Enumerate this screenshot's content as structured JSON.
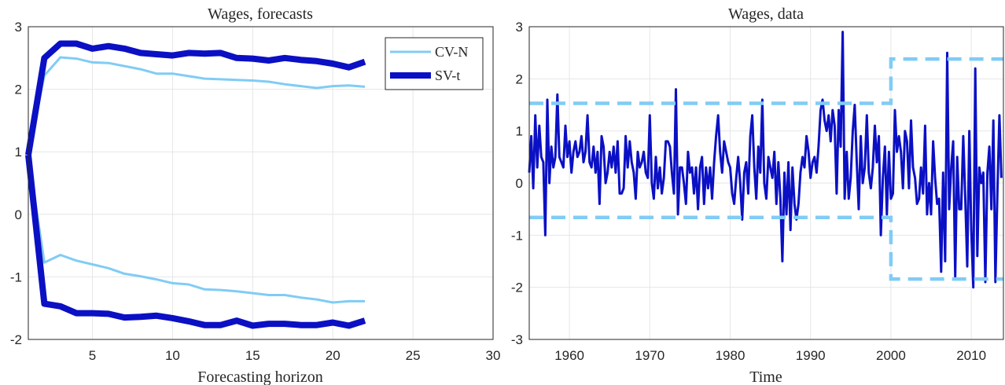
{
  "chart_data": [
    {
      "type": "line",
      "title": "Wages, forecasts",
      "xlabel": "Forecasting horizon",
      "ylabel": "",
      "xlim": [
        1,
        30
      ],
      "ylim": [
        -2,
        3
      ],
      "xticks": [
        5,
        10,
        15,
        20,
        25,
        30
      ],
      "yticks": [
        3,
        2,
        1,
        0,
        -1,
        -2
      ],
      "grid": true,
      "legend": {
        "position": "top-right",
        "entries": [
          "CV-N",
          "SV-t"
        ]
      },
      "x": [
        1,
        2,
        3,
        4,
        5,
        6,
        7,
        8,
        9,
        10,
        11,
        12,
        13,
        14,
        15,
        16,
        17,
        18,
        19,
        20,
        21,
        22
      ],
      "series": [
        {
          "name": "CV-N",
          "band": "upper",
          "color": "#80ccf5",
          "values": [
            0.95,
            2.22,
            2.51,
            2.49,
            2.43,
            2.42,
            2.37,
            2.32,
            2.25,
            2.25,
            2.21,
            2.17,
            2.16,
            2.15,
            2.14,
            2.12,
            2.08,
            2.05,
            2.02,
            2.05,
            2.06,
            2.04
          ]
        },
        {
          "name": "CV-N",
          "band": "lower",
          "color": "#80ccf5",
          "values": [
            0.95,
            -0.77,
            -0.65,
            -0.74,
            -0.8,
            -0.86,
            -0.95,
            -0.99,
            -1.04,
            -1.1,
            -1.12,
            -1.2,
            -1.21,
            -1.23,
            -1.26,
            -1.29,
            -1.29,
            -1.33,
            -1.36,
            -1.41,
            -1.39,
            -1.39
          ]
        },
        {
          "name": "SV-t",
          "band": "upper",
          "color": "#0b10c4",
          "values": [
            0.95,
            2.5,
            2.73,
            2.73,
            2.65,
            2.69,
            2.65,
            2.58,
            2.56,
            2.54,
            2.58,
            2.57,
            2.58,
            2.5,
            2.49,
            2.46,
            2.5,
            2.47,
            2.45,
            2.41,
            2.35,
            2.44
          ]
        },
        {
          "name": "SV-t",
          "band": "lower",
          "color": "#0b10c4",
          "values": [
            0.95,
            -1.43,
            -1.47,
            -1.58,
            -1.58,
            -1.59,
            -1.65,
            -1.64,
            -1.62,
            -1.66,
            -1.71,
            -1.77,
            -1.77,
            -1.7,
            -1.78,
            -1.75,
            -1.75,
            -1.77,
            -1.77,
            -1.73,
            -1.78,
            -1.7
          ]
        }
      ]
    },
    {
      "type": "line",
      "title": "Wages, data",
      "xlabel": "Time",
      "ylabel": "",
      "xlim": [
        1955,
        2014
      ],
      "ylim": [
        -3,
        3
      ],
      "xticks": [
        1960,
        1970,
        1980,
        1990,
        2000,
        2010
      ],
      "yticks": [
        3,
        2,
        1,
        0,
        -1,
        -2,
        -3
      ],
      "grid": true,
      "series": [
        {
          "name": "",
          "color": "#0b10c4",
          "x_start": 1955,
          "x_step": 0.25,
          "values": [
            0.2,
            0.9,
            -0.1,
            1.3,
            0.3,
            1.1,
            0.5,
            0.4,
            -1.0,
            1.6,
            0.0,
            0.7,
            0.3,
            0.5,
            1.7,
            0.5,
            0.4,
            0.3,
            1.1,
            0.5,
            0.8,
            0.2,
            0.6,
            0.8,
            0.5,
            0.6,
            0.9,
            0.4,
            0.6,
            1.3,
            0.4,
            0.3,
            0.7,
            0.2,
            0.6,
            -0.4,
            0.9,
            0.7,
            0.0,
            0.2,
            0.6,
            0.3,
            0.7,
            0.2,
            0.8,
            -0.2,
            -0.2,
            -0.1,
            0.9,
            0.3,
            0.8,
            0.4,
            0.2,
            -0.3,
            0.6,
            0.3,
            0.4,
            0.6,
            0.2,
            0.1,
            1.3,
            0.0,
            -0.3,
            0.5,
            -0.1,
            0.3,
            -0.2,
            0.1,
            0.8,
            0.8,
            0.7,
            0.2,
            -0.2,
            1.8,
            -0.6,
            0.3,
            0.3,
            0.0,
            -0.4,
            0.6,
            0.2,
            0.3,
            -0.2,
            0.3,
            -0.5,
            0.3,
            0.5,
            -0.4,
            0.3,
            -0.1,
            0.3,
            -0.3,
            0.4,
            0.9,
            1.3,
            0.6,
            0.2,
            0.8,
            0.6,
            0.4,
            0.3,
            -0.2,
            -0.4,
            0.1,
            0.5,
            0.0,
            -0.7,
            0.2,
            0.4,
            -0.2,
            0.9,
            1.3,
            0.3,
            -0.3,
            0.7,
            0.2,
            1.6,
            0.0,
            -0.3,
            0.5,
            0.3,
            0.1,
            0.6,
            -0.4,
            0.4,
            -0.3,
            -1.5,
            0.2,
            -0.6,
            0.4,
            -0.9,
            0.3,
            -0.4,
            -0.7,
            -0.4,
            0.2,
            0.5,
            0.3,
            0.9,
            0.6,
            0.1,
            0.4,
            0.5,
            0.2,
            0.7,
            1.4,
            1.6,
            1.2,
            1.0,
            1.3,
            0.8,
            1.4,
            1.1,
            -0.2,
            1.4,
            0.7,
            2.9,
            -0.3,
            0.6,
            -0.3,
            0.1,
            1.0,
            1.5,
            0.4,
            -0.5,
            0.9,
            0.0,
            0.3,
            1.3,
            0.2,
            -0.1,
            0.3,
            1.1,
            0.4,
            0.9,
            -1.0,
            0.1,
            0.7,
            -0.6,
            0.6,
            -0.3,
            -0.2,
            1.4,
            0.6,
            0.9,
            0.6,
            -0.1,
            1.0,
            0.8,
            -0.1,
            1.2,
            0.3,
            0.1,
            -0.4,
            -0.3,
            0.3,
            -0.2,
            1.1,
            -0.6,
            0.0,
            -0.6,
            0.8,
            0.1,
            -0.4,
            -0.3,
            -1.7,
            0.2,
            -1.5,
            2.5,
            -0.5,
            0.3,
            0.8,
            -1.8,
            0.5,
            -0.5,
            -0.5,
            0.9,
            -0.3,
            -1.6,
            1.0,
            -0.9,
            -2.0,
            2.2,
            -1.4,
            0.3,
            0.0,
            0.2,
            -1.9,
            0.2,
            0.7,
            -0.5,
            1.2,
            -1.9,
            -0.2,
            1.3,
            0.1
          ]
        },
        {
          "name": "",
          "band": "upper",
          "color": "#80ccf5",
          "dashed": true,
          "segments": [
            {
              "x": [
                1955,
                2000
              ],
              "y": [
                1.53,
                1.53
              ]
            },
            {
              "x": [
                2000,
                2014
              ],
              "y": [
                2.38,
                2.38
              ]
            }
          ]
        },
        {
          "name": "",
          "band": "lower",
          "color": "#80ccf5",
          "dashed": true,
          "segments": [
            {
              "x": [
                1955,
                2000
              ],
              "y": [
                -0.66,
                -0.66
              ]
            },
            {
              "x": [
                2000,
                2014
              ],
              "y": [
                -1.84,
                -1.84
              ]
            }
          ]
        }
      ]
    }
  ]
}
